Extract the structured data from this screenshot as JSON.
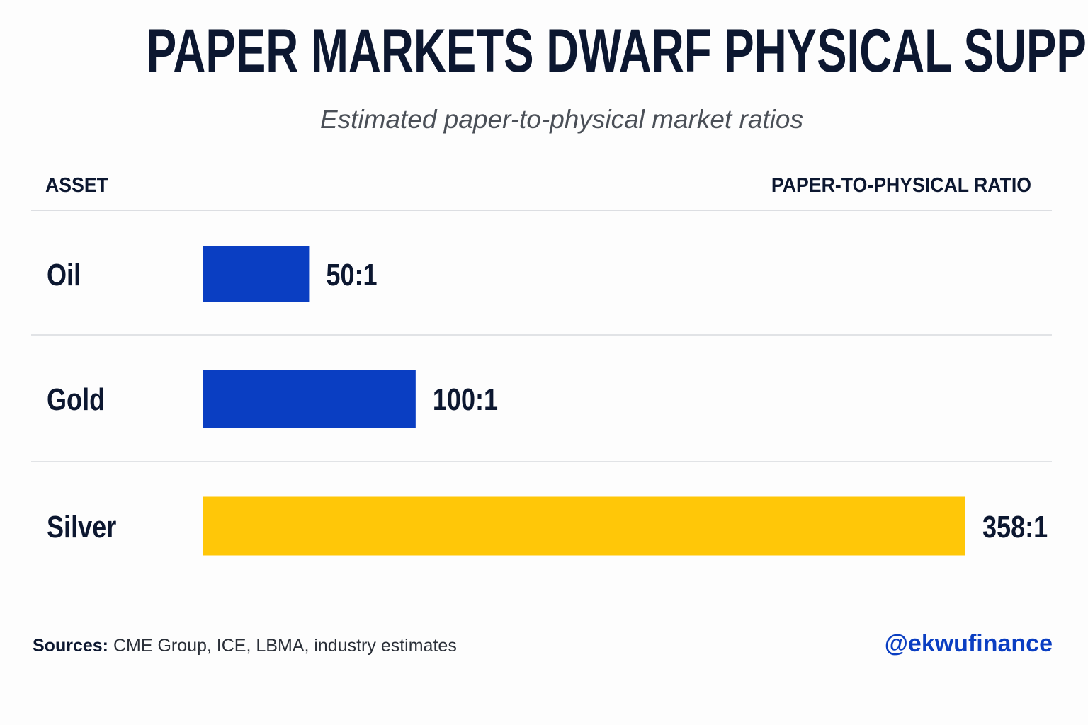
{
  "header": {
    "title": "PAPER MARKETS DWARF PHYSICAL SUPPLY",
    "subtitle": "Estimated paper-to-physical market ratios"
  },
  "columns": {
    "asset": "ASSET",
    "ratio": "PAPER-TO-PHYSICAL RATIO"
  },
  "chart_data": {
    "type": "bar",
    "orientation": "horizontal",
    "title": "PAPER MARKETS DWARF PHYSICAL SUPPLY",
    "subtitle": "Estimated paper-to-physical market ratios",
    "categories": [
      "Oil",
      "Gold",
      "Silver"
    ],
    "values": [
      50,
      100,
      358
    ],
    "value_labels": [
      "50:1",
      "100:1",
      "358:1"
    ],
    "bar_colors": [
      "#0a3ec2",
      "#0a3ec2",
      "#ffc708"
    ],
    "xlim": [
      0,
      358
    ],
    "grid": false,
    "legend": "none"
  },
  "footer": {
    "sources_label": "Sources:",
    "sources_text": "CME Group, ICE, LBMA, industry estimates",
    "handle": "@ekwufinance",
    "handle_color": "#0a3ec2"
  }
}
